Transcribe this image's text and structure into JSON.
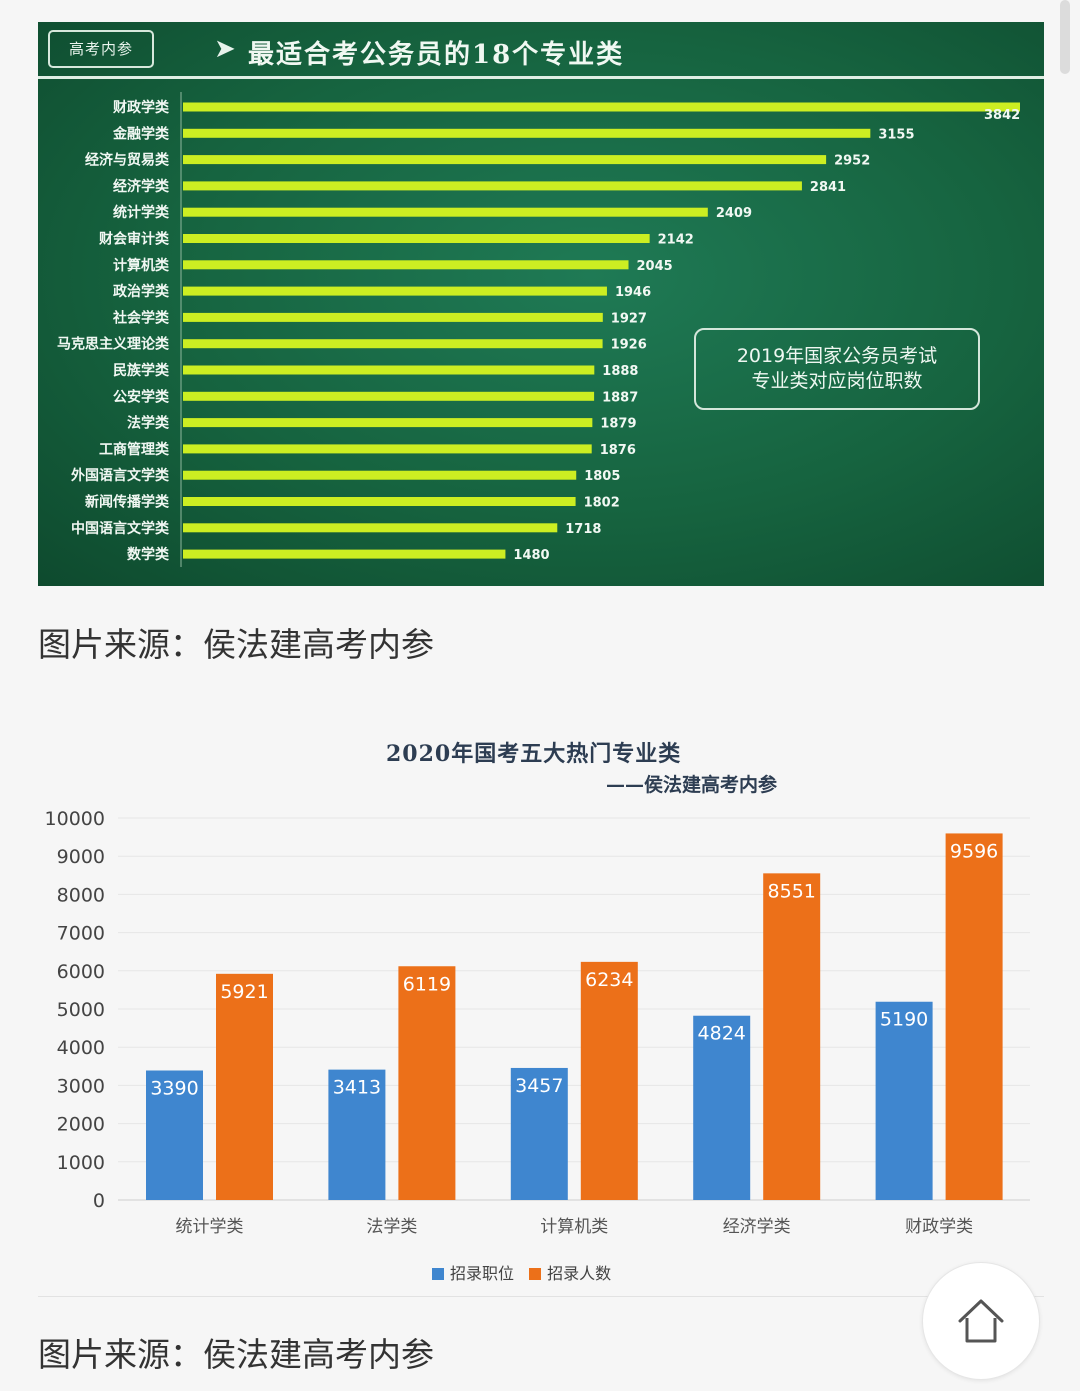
{
  "chart_data": [
    {
      "type": "bar",
      "orientation": "horizontal",
      "badge": "高考内参",
      "title": "最适合考公务员的18个专业类",
      "note_line1": "2019年国家公务员考试",
      "note_line2": "专业类对应岗位职数",
      "categories": [
        "财政学类",
        "金融学类",
        "经济与贸易类",
        "经济学类",
        "统计学类",
        "财会审计类",
        "计算机类",
        "政治学类",
        "社会学类",
        "马克思主义理论类",
        "民族学类",
        "公安学类",
        "法学类",
        "工商管理类",
        "外国语言文学类",
        "新闻传播学类",
        "中国语言文学类",
        "数学类"
      ],
      "values": [
        3842,
        3155,
        2952,
        2841,
        2409,
        2142,
        2045,
        1946,
        1927,
        1926,
        1888,
        1887,
        1879,
        1876,
        1805,
        1802,
        1718,
        1480
      ],
      "xlim": [
        0,
        3842
      ],
      "bar_color": "#ccee22",
      "background_color": "#16633f"
    },
    {
      "type": "bar",
      "title": "2020年国考五大热门专业类",
      "subtitle": "——侯法建高考内参",
      "categories": [
        "统计学类",
        "法学类",
        "计算机类",
        "经济学类",
        "财政学类"
      ],
      "series": [
        {
          "name": "招录职位",
          "values": [
            3390,
            3413,
            3457,
            4824,
            5190
          ],
          "color": "#3f86cf"
        },
        {
          "name": "招录人数",
          "values": [
            5921,
            6119,
            6234,
            8551,
            9596
          ],
          "color": "#ec7019"
        }
      ],
      "ylim": [
        0,
        10000
      ],
      "yticks": [
        0,
        1000,
        2000,
        3000,
        4000,
        5000,
        6000,
        7000,
        8000,
        9000,
        10000
      ],
      "grid": true,
      "legend_position": "bottom"
    }
  ],
  "captions": {
    "first": "图片来源：侯法建高考内参",
    "second": "图片来源：侯法建高考内参"
  },
  "icons": {
    "home": "home-icon",
    "arrow": "arrow-right-icon"
  }
}
